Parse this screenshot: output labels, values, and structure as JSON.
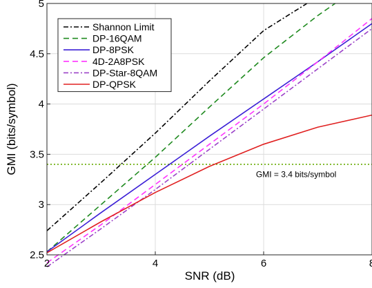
{
  "chart_data": {
    "type": "line",
    "xlabel": "SNR (dB)",
    "ylabel": "GMI (bits/symbol)",
    "xlim": [
      2,
      8
    ],
    "ylim": [
      2.5,
      5
    ],
    "xticks": [
      "2",
      "4",
      "6",
      "8"
    ],
    "yticks": [
      "2.5",
      "3",
      "3.5",
      "4",
      "4.5",
      "5"
    ],
    "grid": true,
    "legend_position": "top-left",
    "series": [
      {
        "name": "Shannon Limit",
        "color": "#000000",
        "dash": "dashdot",
        "x": [
          2,
          3,
          4,
          5,
          6,
          6.8
        ],
        "y": [
          2.74,
          3.22,
          3.71,
          4.23,
          4.73,
          5.0
        ]
      },
      {
        "name": "DP-16QAM",
        "color": "#1f8a1f",
        "dash": "dashed",
        "x": [
          2,
          3,
          4,
          5,
          6,
          7,
          7.32
        ],
        "y": [
          2.53,
          3.0,
          3.47,
          3.97,
          4.46,
          4.88,
          5.0
        ]
      },
      {
        "name": "DP-8PSK",
        "color": "#3b1fd6",
        "dash": "solid",
        "x": [
          2,
          3,
          4,
          5,
          6,
          7,
          8
        ],
        "y": [
          2.53,
          2.92,
          3.3,
          3.68,
          4.05,
          4.42,
          4.8
        ]
      },
      {
        "name": "4D-2A8PSK",
        "color": "#ff33ff",
        "dash": "dashed",
        "x": [
          2,
          3,
          4,
          5,
          6,
          7,
          8
        ],
        "y": [
          2.42,
          2.8,
          3.2,
          3.6,
          4.0,
          4.42,
          4.85
        ]
      },
      {
        "name": "DP-Star-8QAM",
        "color": "#9b42c8",
        "dash": "dashdot",
        "x": [
          2,
          3,
          4,
          5,
          6,
          7,
          8
        ],
        "y": [
          2.38,
          2.76,
          3.15,
          3.55,
          3.95,
          4.35,
          4.75
        ]
      },
      {
        "name": "DP-QPSK",
        "color": "#e02020",
        "dash": "solid",
        "x": [
          2,
          3,
          4,
          5,
          6,
          7,
          8
        ],
        "y": [
          2.52,
          2.83,
          3.12,
          3.38,
          3.6,
          3.77,
          3.89
        ]
      }
    ],
    "reference_lines": [
      {
        "orientation": "horizontal",
        "y": 3.4,
        "color": "#66aa00",
        "dash": "dotted"
      }
    ],
    "annotations": [
      {
        "text": "GMI = 3.4 bits/symbol",
        "x": 6.6,
        "y": 3.3
      }
    ]
  }
}
